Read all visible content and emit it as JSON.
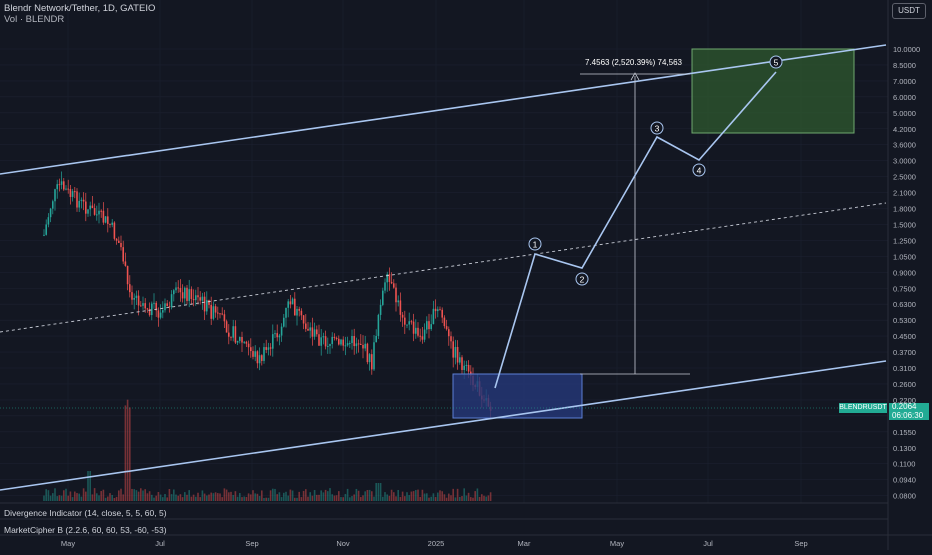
{
  "header": {
    "title": "Blendr Network/Tether, 1D, GATEIO",
    "volume_label": "Vol · BLENDR",
    "currency_button": "USDT"
  },
  "y_axis": {
    "ticks": [
      "10.0000",
      "8.5000",
      "7.0000",
      "6.0000",
      "5.0000",
      "4.2000",
      "3.6000",
      "3.0000",
      "2.5000",
      "2.1000",
      "1.8000",
      "1.5000",
      "1.2500",
      "1.0500",
      "0.9000",
      "0.7500",
      "0.6300",
      "0.5300",
      "0.4500",
      "0.3700",
      "0.3100",
      "0.2600",
      "0.2200",
      "0.1850",
      "0.1550",
      "0.1300",
      "0.1100",
      "0.0940",
      "0.0800"
    ]
  },
  "x_axis": {
    "ticks": [
      "May",
      "Jul",
      "Sep",
      "Nov",
      "2025",
      "Mar",
      "May",
      "Jul",
      "Sep"
    ]
  },
  "price_label": {
    "symbol": "BLENDRUSDT",
    "price": "0.2064",
    "countdown": "06:06:30"
  },
  "measure": {
    "label": "7.4563 (2,520.39%) 74,563"
  },
  "waves": [
    "1",
    "2",
    "3",
    "4",
    "5"
  ],
  "indicators": {
    "divergence": "Divergence Indicator (14, close, 5, 5, 60, 5)",
    "marketcipher": "MarketCipher B (2.2.6, 60, 60, 53, -60, -53)"
  },
  "colors": {
    "background": "#131722",
    "up": "#26a69a",
    "down": "#ef5350",
    "trendline": "#a9c6f0",
    "price_tag": "#22ab94",
    "target_box": "#2f5a2f",
    "entry_box": "#25387a"
  }
}
